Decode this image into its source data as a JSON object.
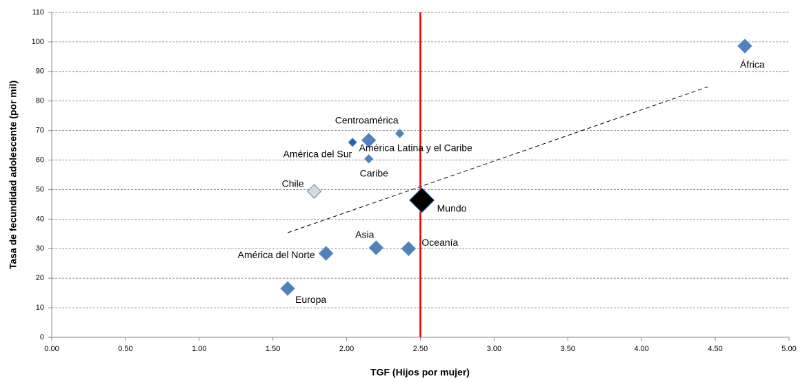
{
  "chart_data": {
    "type": "scatter",
    "x_label": "TGF (Hijos por mujer)",
    "y_label": "Tasa de fecundidad adolescente (por mil)",
    "xlim": [
      0,
      5
    ],
    "ylim": [
      0,
      110
    ],
    "xticks": [
      {
        "value": 0,
        "label": "0.00"
      },
      {
        "value": 0.5,
        "label": "0.50"
      },
      {
        "value": 1,
        "label": "1.00"
      },
      {
        "value": 1.5,
        "label": "1.50"
      },
      {
        "value": 2,
        "label": "2.00"
      },
      {
        "value": 2.5,
        "label": "2.50"
      },
      {
        "value": 3,
        "label": "3.00"
      },
      {
        "value": 3.5,
        "label": "3.50"
      },
      {
        "value": 4,
        "label": "4.00"
      },
      {
        "value": 4.5,
        "label": "4.50"
      },
      {
        "value": 5,
        "label": "5.00"
      }
    ],
    "yticks": [
      0,
      10,
      20,
      30,
      40,
      50,
      60,
      70,
      80,
      90,
      100,
      110
    ],
    "grid": true,
    "reference_line": {
      "x": 2.5,
      "color": "#e00000"
    },
    "trendline": {
      "x": [
        1.6,
        4.45
      ],
      "y": [
        35.4,
        84.8
      ]
    },
    "points": [
      {
        "label": "África",
        "x": 4.7,
        "y": 98.6,
        "color": "#4f81bd",
        "marker": "normal"
      },
      {
        "label": "Centroamérica",
        "x": 2.36,
        "y": 69,
        "color": "#4f81bd",
        "marker": "small"
      },
      {
        "label": "América Latina y el Caribe",
        "x": 2.15,
        "y": 66.7,
        "color": "#4f81bd",
        "marker": "normal"
      },
      {
        "label": "América del Sur",
        "x": 2.04,
        "y": 66,
        "color": "#1f64ad",
        "marker": "small"
      },
      {
        "label": "Caribe",
        "x": 2.15,
        "y": 60.4,
        "color": "#4f81bd",
        "marker": "small"
      },
      {
        "label": "Chile",
        "x": 1.78,
        "y": 49.4,
        "color": "#d9d9d9",
        "marker": "normal"
      },
      {
        "label": "Mundo",
        "x": 2.51,
        "y": 46.4,
        "color": "#000000",
        "marker": "large"
      },
      {
        "label": "Asia",
        "x": 2.2,
        "y": 30.3,
        "color": "#4f81bd",
        "marker": "normal"
      },
      {
        "label": "Oceanía",
        "x": 2.42,
        "y": 30,
        "color": "#4f81bd",
        "marker": "normal"
      },
      {
        "label": "América del Norte",
        "x": 1.86,
        "y": 28.4,
        "color": "#4f81bd",
        "marker": "normal"
      },
      {
        "label": "Europa",
        "x": 1.6,
        "y": 16.5,
        "color": "#4f81bd",
        "marker": "normal"
      }
    ]
  }
}
